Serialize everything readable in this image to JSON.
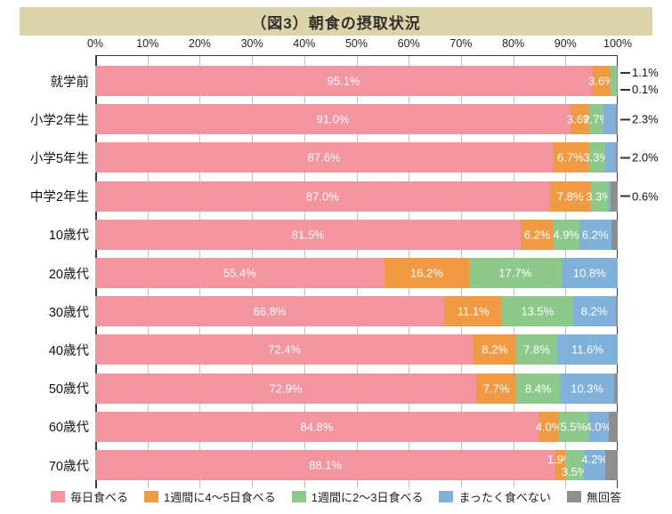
{
  "title": "（図3）朝食の摂取状況",
  "axis": {
    "ticks": [
      "0%",
      "10%",
      "20%",
      "30%",
      "40%",
      "50%",
      "60%",
      "70%",
      "80%",
      "90%",
      "100%"
    ]
  },
  "colors": {
    "daily": "#F2959F",
    "wk45": "#F19A44",
    "wk23": "#8DC98B",
    "never": "#7FB1DB",
    "na": "#8F8F8F",
    "title_band": "#DBD4AB",
    "grid_line": "#BFBFBF",
    "axis_line": "#3B3B3B",
    "bar_label": "#FFFFFF"
  },
  "legend": {
    "items": [
      {
        "label": "毎日食べる",
        "color_key": "daily"
      },
      {
        "label": "1週間に4〜5日食べる",
        "color_key": "wk45"
      },
      {
        "label": "1週間に2〜3日食べる",
        "color_key": "wk23"
      },
      {
        "label": "まったく食べない",
        "color_key": "never"
      },
      {
        "label": "無回答",
        "color_key": "na"
      }
    ]
  },
  "chart_data": {
    "type": "bar",
    "stacked": true,
    "orientation": "horizontal",
    "title": "（図3）朝食の摂取状況",
    "xlim": [
      0,
      100
    ],
    "x_ticks_percent": [
      0,
      10,
      20,
      30,
      40,
      50,
      60,
      70,
      80,
      90,
      100
    ],
    "grid": true,
    "legend_position": "bottom",
    "categories": [
      "就学前",
      "小学2年生",
      "小学5年生",
      "中学2年生",
      "10歳代",
      "20歳代",
      "30歳代",
      "40歳代",
      "50歳代",
      "60歳代",
      "70歳代"
    ],
    "series": [
      {
        "name": "毎日食べる",
        "values": [
          95.1,
          91.0,
          87.6,
          87.0,
          81.5,
          55.4,
          66.8,
          72.4,
          72.9,
          84.8,
          88.1
        ]
      },
      {
        "name": "1週間に4〜5日食べる",
        "values": [
          3.6,
          3.6,
          6.7,
          7.8,
          6.2,
          16.2,
          11.1,
          8.2,
          7.7,
          4.0,
          1.9
        ]
      },
      {
        "name": "1週間に2〜3日食べる",
        "values": [
          1.1,
          2.7,
          3.3,
          3.3,
          4.9,
          17.7,
          13.5,
          7.8,
          8.4,
          5.5,
          3.5
        ]
      },
      {
        "name": "まったく食べない",
        "values": [
          0.1,
          2.3,
          2.0,
          0.6,
          6.2,
          10.8,
          8.2,
          11.6,
          10.3,
          4.0,
          4.2
        ]
      },
      {
        "name": "無回答",
        "values": [
          0.1,
          0.4,
          0.4,
          1.3,
          1.2,
          0,
          0.4,
          0,
          0.7,
          1.7,
          2.3
        ]
      }
    ],
    "rows": [
      {
        "category": "就学前",
        "segments": [
          {
            "key": "daily",
            "value": 95.1,
            "label": "95.1%",
            "placement": "in"
          },
          {
            "key": "wk45",
            "value": 3.6,
            "label": "3.6%",
            "placement": "in"
          },
          {
            "key": "wk23",
            "value": 1.1,
            "label": "1.1%",
            "placement": "callout-up"
          },
          {
            "key": "never",
            "value": 0.1,
            "label": "0.1%",
            "placement": "callout-down"
          },
          {
            "key": "na",
            "value": 0.1,
            "label": "",
            "placement": "none"
          }
        ]
      },
      {
        "category": "小学2年生",
        "segments": [
          {
            "key": "daily",
            "value": 91.0,
            "label": "91.0%",
            "placement": "in"
          },
          {
            "key": "wk45",
            "value": 3.6,
            "label": "3.6%",
            "placement": "in"
          },
          {
            "key": "wk23",
            "value": 2.7,
            "label": "2.7%",
            "placement": "in"
          },
          {
            "key": "never",
            "value": 2.3,
            "label": "2.3%",
            "placement": "callout-mid"
          },
          {
            "key": "na",
            "value": 0.4,
            "label": "",
            "placement": "none"
          }
        ]
      },
      {
        "category": "小学5年生",
        "segments": [
          {
            "key": "daily",
            "value": 87.6,
            "label": "87.6%",
            "placement": "in"
          },
          {
            "key": "wk45",
            "value": 6.7,
            "label": "6.7%",
            "placement": "in"
          },
          {
            "key": "wk23",
            "value": 3.3,
            "label": "3.3%",
            "placement": "in"
          },
          {
            "key": "never",
            "value": 2.0,
            "label": "2.0%",
            "placement": "callout-mid"
          },
          {
            "key": "na",
            "value": 0.4,
            "label": "",
            "placement": "none"
          }
        ]
      },
      {
        "category": "中学2年生",
        "segments": [
          {
            "key": "daily",
            "value": 87.0,
            "label": "87.0%",
            "placement": "in"
          },
          {
            "key": "wk45",
            "value": 7.8,
            "label": "7.8%",
            "placement": "in"
          },
          {
            "key": "wk23",
            "value": 3.3,
            "label": "3.3%",
            "placement": "in"
          },
          {
            "key": "never",
            "value": 0.6,
            "label": "0.6%",
            "placement": "callout-mid"
          },
          {
            "key": "na",
            "value": 1.3,
            "label": "",
            "placement": "none"
          }
        ]
      },
      {
        "category": "10歳代",
        "segments": [
          {
            "key": "daily",
            "value": 81.5,
            "label": "81.5%",
            "placement": "in"
          },
          {
            "key": "wk45",
            "value": 6.2,
            "label": "6.2%",
            "placement": "in"
          },
          {
            "key": "wk23",
            "value": 4.9,
            "label": "4.9%",
            "placement": "in"
          },
          {
            "key": "never",
            "value": 6.2,
            "label": "6.2%",
            "placement": "in"
          },
          {
            "key": "na",
            "value": 1.2,
            "label": "",
            "placement": "none"
          }
        ]
      },
      {
        "category": "20歳代",
        "segments": [
          {
            "key": "daily",
            "value": 55.4,
            "label": "55.4%",
            "placement": "in"
          },
          {
            "key": "wk45",
            "value": 16.2,
            "label": "16.2%",
            "placement": "in"
          },
          {
            "key": "wk23",
            "value": 17.7,
            "label": "17.7%",
            "placement": "in"
          },
          {
            "key": "never",
            "value": 10.8,
            "label": "10.8%",
            "placement": "in"
          },
          {
            "key": "na",
            "value": 0,
            "label": "",
            "placement": "none"
          }
        ]
      },
      {
        "category": "30歳代",
        "segments": [
          {
            "key": "daily",
            "value": 66.8,
            "label": "66.8%",
            "placement": "in"
          },
          {
            "key": "wk45",
            "value": 11.1,
            "label": "11.1%",
            "placement": "in"
          },
          {
            "key": "wk23",
            "value": 13.5,
            "label": "13.5%",
            "placement": "in"
          },
          {
            "key": "never",
            "value": 8.2,
            "label": "8.2%",
            "placement": "in"
          },
          {
            "key": "na",
            "value": 0.4,
            "label": "",
            "placement": "none"
          }
        ]
      },
      {
        "category": "40歳代",
        "segments": [
          {
            "key": "daily",
            "value": 72.4,
            "label": "72.4%",
            "placement": "in"
          },
          {
            "key": "wk45",
            "value": 8.2,
            "label": "8.2%",
            "placement": "in"
          },
          {
            "key": "wk23",
            "value": 7.8,
            "label": "7.8%",
            "placement": "in"
          },
          {
            "key": "never",
            "value": 11.6,
            "label": "11.6%",
            "placement": "in"
          },
          {
            "key": "na",
            "value": 0,
            "label": "",
            "placement": "none"
          }
        ]
      },
      {
        "category": "50歳代",
        "segments": [
          {
            "key": "daily",
            "value": 72.9,
            "label": "72.9%",
            "placement": "in"
          },
          {
            "key": "wk45",
            "value": 7.7,
            "label": "7.7%",
            "placement": "in"
          },
          {
            "key": "wk23",
            "value": 8.4,
            "label": "8.4%",
            "placement": "in"
          },
          {
            "key": "never",
            "value": 10.3,
            "label": "10.3%",
            "placement": "in"
          },
          {
            "key": "na",
            "value": 0.7,
            "label": "",
            "placement": "none"
          }
        ]
      },
      {
        "category": "60歳代",
        "segments": [
          {
            "key": "daily",
            "value": 84.8,
            "label": "84.8%",
            "placement": "in"
          },
          {
            "key": "wk45",
            "value": 4.0,
            "label": "4.0%",
            "placement": "in"
          },
          {
            "key": "wk23",
            "value": 5.5,
            "label": "5.5%",
            "placement": "in"
          },
          {
            "key": "never",
            "value": 4.0,
            "label": "4.0%",
            "placement": "in"
          },
          {
            "key": "na",
            "value": 1.7,
            "label": "",
            "placement": "none"
          }
        ]
      },
      {
        "category": "70歳代",
        "segments": [
          {
            "key": "daily",
            "value": 88.1,
            "label": "88.1%",
            "placement": "in"
          },
          {
            "key": "wk45",
            "value": 1.9,
            "label": "1.9%",
            "placement": "up"
          },
          {
            "key": "wk23",
            "value": 3.5,
            "label": "3.5%",
            "placement": "down"
          },
          {
            "key": "never",
            "value": 4.2,
            "label": "4.2%",
            "placement": "up"
          },
          {
            "key": "na",
            "value": 2.3,
            "label": "",
            "placement": "none"
          }
        ]
      }
    ]
  }
}
